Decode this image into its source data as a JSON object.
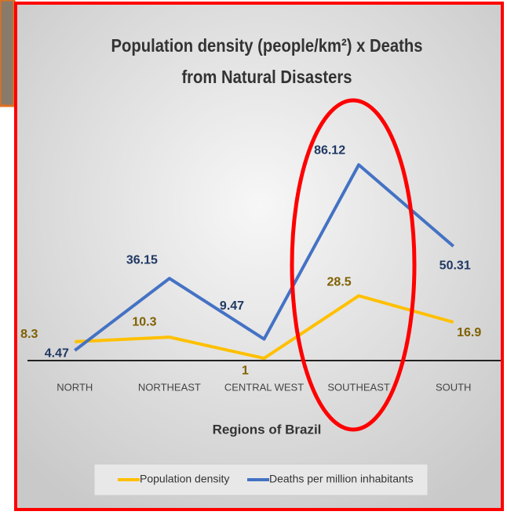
{
  "chart_data": {
    "type": "line",
    "title": "Population density (people/km²)  x Deaths from Natural Disasters",
    "x_label": "Regions of Brazil",
    "categories": [
      "NORTH",
      "NORTHEAST",
      "CENTRAL WEST",
      "SOUTHEAST",
      "SOUTH"
    ],
    "series": [
      {
        "name": "Population density",
        "color": "#FFC000",
        "values": [
          8.3,
          10.3,
          1,
          28.5,
          16.9
        ]
      },
      {
        "name": "Deaths  per million inhabitants",
        "color": "#4472C4",
        "values": [
          4.47,
          36.15,
          9.47,
          86.12,
          50.31
        ]
      }
    ],
    "ylim": [
      0,
      100
    ],
    "legend": "bottom"
  }
}
